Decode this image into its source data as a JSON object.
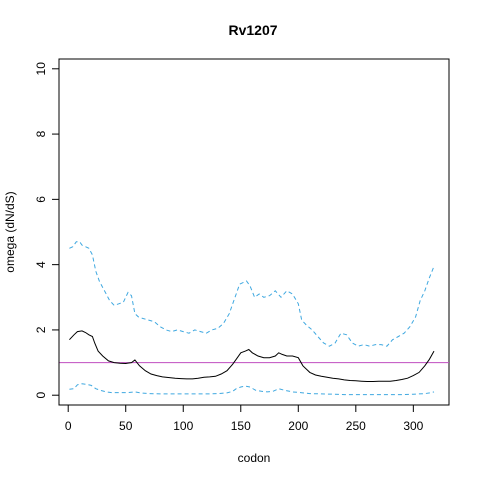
{
  "chart_data": {
    "type": "line",
    "title": "Rv1207",
    "xlabel": "codon",
    "ylabel": "omega (dN/dS)",
    "xlim": [
      -8,
      331
    ],
    "ylim": [
      -0.3,
      10.3
    ],
    "xticks": [
      0,
      50,
      100,
      150,
      200,
      250,
      300
    ],
    "yticks": [
      0,
      2,
      4,
      6,
      8,
      10
    ],
    "grid": false,
    "reference_line": {
      "y": 1,
      "color": "#c04ec0"
    },
    "series": [
      {
        "style": "solid",
        "color": "#000000",
        "x": [
          1,
          5,
          8,
          12,
          15,
          18,
          21,
          23,
          26,
          30,
          35,
          40,
          45,
          50,
          55,
          58,
          62,
          67,
          72,
          77,
          82,
          88,
          93,
          98,
          103,
          108,
          113,
          118,
          123,
          128,
          133,
          138,
          143,
          146,
          150,
          154,
          157,
          160,
          165,
          170,
          175,
          180,
          183,
          186,
          190,
          195,
          200,
          204,
          210,
          215,
          220,
          225,
          230,
          235,
          240,
          245,
          250,
          255,
          260,
          265,
          270,
          275,
          280,
          285,
          290,
          295,
          300,
          305,
          310,
          314,
          318
        ],
        "y": [
          1.7,
          1.85,
          1.95,
          1.97,
          1.92,
          1.85,
          1.8,
          1.6,
          1.35,
          1.2,
          1.05,
          1.0,
          0.98,
          0.97,
          1.0,
          1.08,
          0.9,
          0.75,
          0.65,
          0.6,
          0.56,
          0.54,
          0.52,
          0.51,
          0.5,
          0.5,
          0.52,
          0.55,
          0.56,
          0.58,
          0.65,
          0.75,
          0.95,
          1.1,
          1.3,
          1.35,
          1.4,
          1.3,
          1.2,
          1.15,
          1.15,
          1.2,
          1.3,
          1.25,
          1.2,
          1.2,
          1.15,
          0.9,
          0.7,
          0.62,
          0.58,
          0.55,
          0.52,
          0.5,
          0.47,
          0.45,
          0.44,
          0.43,
          0.42,
          0.42,
          0.43,
          0.43,
          0.43,
          0.45,
          0.48,
          0.52,
          0.6,
          0.7,
          0.9,
          1.1,
          1.35
        ]
      },
      {
        "style": "dashed",
        "color": "#3fa8e0",
        "x": [
          1,
          4,
          7,
          10,
          12,
          15,
          18,
          21,
          24,
          27,
          30,
          33,
          36,
          40,
          44,
          48,
          52,
          55,
          58,
          61,
          65,
          70,
          75,
          80,
          85,
          90,
          95,
          100,
          105,
          110,
          115,
          120,
          125,
          130,
          135,
          140,
          143,
          146,
          149,
          152,
          155,
          158,
          162,
          166,
          170,
          175,
          180,
          185,
          190,
          195,
          200,
          203,
          207,
          212,
          217,
          222,
          227,
          232,
          237,
          242,
          247,
          252,
          257,
          262,
          267,
          272,
          277,
          282,
          287,
          292,
          297,
          302,
          306,
          310,
          314,
          318
        ],
        "y": [
          4.5,
          4.55,
          4.7,
          4.7,
          4.6,
          4.55,
          4.5,
          4.3,
          3.8,
          3.5,
          3.3,
          3.1,
          2.9,
          2.75,
          2.8,
          2.85,
          3.15,
          3.05,
          2.5,
          2.4,
          2.35,
          2.3,
          2.25,
          2.1,
          2.0,
          1.95,
          2.0,
          1.95,
          1.9,
          2.0,
          1.95,
          1.9,
          2.0,
          2.05,
          2.2,
          2.5,
          2.8,
          3.1,
          3.4,
          3.45,
          3.5,
          3.35,
          3.0,
          3.1,
          3.0,
          3.05,
          3.2,
          3.0,
          3.2,
          3.1,
          2.8,
          2.3,
          2.15,
          2.0,
          1.8,
          1.6,
          1.5,
          1.6,
          1.9,
          1.85,
          1.6,
          1.5,
          1.55,
          1.5,
          1.55,
          1.55,
          1.5,
          1.7,
          1.8,
          1.9,
          2.1,
          2.4,
          2.9,
          3.2,
          3.6,
          3.95
        ]
      },
      {
        "style": "dashed",
        "color": "#3fa8e0",
        "x": [
          1,
          5,
          8,
          12,
          16,
          20,
          24,
          28,
          33,
          38,
          45,
          52,
          58,
          63,
          70,
          80,
          90,
          100,
          110,
          120,
          130,
          138,
          143,
          146,
          150,
          154,
          158,
          163,
          168,
          173,
          178,
          183,
          188,
          195,
          202,
          210,
          220,
          230,
          240,
          250,
          260,
          270,
          280,
          290,
          300,
          310,
          316,
          318
        ],
        "y": [
          0.18,
          0.2,
          0.32,
          0.35,
          0.33,
          0.3,
          0.2,
          0.15,
          0.1,
          0.08,
          0.08,
          0.08,
          0.1,
          0.07,
          0.05,
          0.04,
          0.04,
          0.04,
          0.04,
          0.04,
          0.05,
          0.07,
          0.12,
          0.2,
          0.25,
          0.28,
          0.25,
          0.15,
          0.12,
          0.1,
          0.12,
          0.2,
          0.15,
          0.1,
          0.08,
          0.05,
          0.04,
          0.03,
          0.02,
          0.02,
          0.02,
          0.02,
          0.02,
          0.02,
          0.03,
          0.05,
          0.08,
          0.1
        ]
      }
    ]
  }
}
